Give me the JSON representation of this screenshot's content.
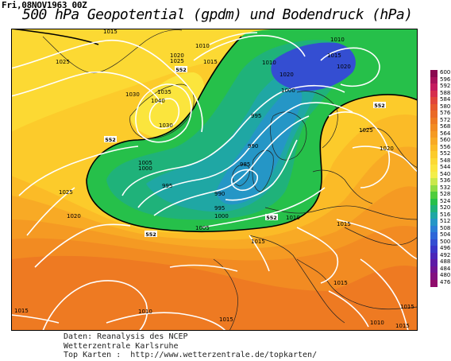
{
  "datestamp": "Fri,08NOV1963 00Z",
  "title": "500 hPa Geopotential (gpdm) und Bodendruck (hPa)",
  "map": {
    "contour_552_label": "552",
    "isobar_labels": [
      "1015",
      "1010",
      "1025",
      "1020",
      "1025",
      "1030",
      "1035",
      "1040",
      "1030",
      "1010",
      "1020",
      "1015",
      "1015",
      "1010",
      "1020",
      "1000",
      "995",
      "1020",
      "1025",
      "1005",
      "1000",
      "990",
      "985",
      "995",
      "995",
      "990",
      "1000",
      "1020",
      "1025",
      "1015",
      "1015",
      "1010",
      "1005",
      "1010",
      "1015",
      "1015",
      "1015",
      "1010",
      "1015",
      "1015",
      "552",
      "552",
      "552",
      "552",
      "552"
    ]
  },
  "legend": {
    "ticks": [
      "600",
      "596",
      "592",
      "588",
      "584",
      "580",
      "576",
      "572",
      "568",
      "564",
      "560",
      "556",
      "552",
      "548",
      "544",
      "540",
      "536",
      "532",
      "528",
      "524",
      "520",
      "516",
      "512",
      "508",
      "504",
      "500",
      "496",
      "492",
      "488",
      "484",
      "480",
      "476"
    ],
    "colors": [
      "#8b0a50",
      "#a8125a",
      "#c41b5f",
      "#d62f4e",
      "#e0453a",
      "#e6592d",
      "#ea6a26",
      "#ee7a22",
      "#f28b22",
      "#f59a23",
      "#f8aa25",
      "#fbbb27",
      "#fccb2b",
      "#fcd933",
      "#fbe53d",
      "#f3ee4a",
      "#c9e84a",
      "#8fdc44",
      "#4fcd3c",
      "#26c04a",
      "#1fb27a",
      "#1fa7a4",
      "#2596c6",
      "#2b7fd6",
      "#2f67d8",
      "#344ed2",
      "#3a36c8",
      "#4a25b8",
      "#5e1aa6",
      "#711494",
      "#821080",
      "#900c6c"
    ]
  },
  "footer": {
    "line1": "Daten: Reanalysis des NCEP",
    "line2": "Wetterzentrale Karlsruhe",
    "line3": "Top Karten :  http://www.wetterzentrale.de/topkarten/"
  }
}
